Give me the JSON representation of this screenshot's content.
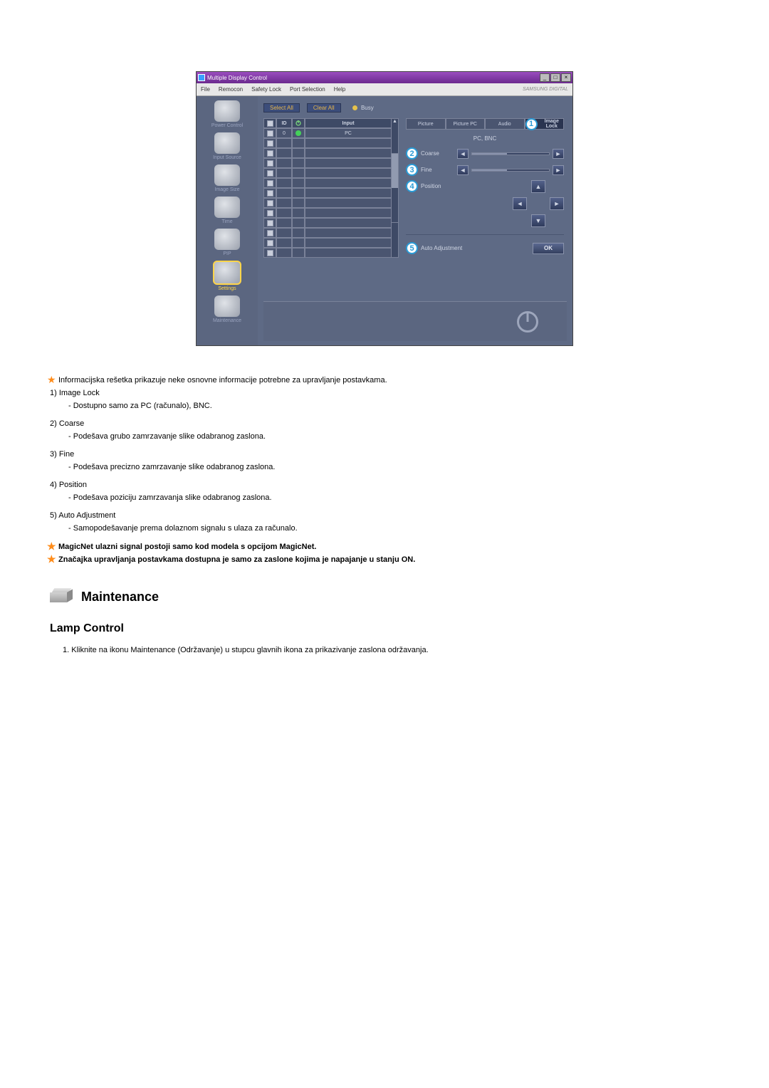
{
  "window": {
    "title": "Multiple Display Control",
    "menu": [
      "File",
      "Remocon",
      "Safety Lock",
      "Port Selection",
      "Help"
    ],
    "brand": "SAMSUNG DIGITAL"
  },
  "sidebar": {
    "items": [
      {
        "label": "Power Control"
      },
      {
        "label": "Input Source"
      },
      {
        "label": "Image Size"
      },
      {
        "label": "Time"
      },
      {
        "label": "PIP"
      },
      {
        "label": "Settings"
      },
      {
        "label": "Maintenance"
      }
    ],
    "active_index": 5
  },
  "toolbar": {
    "select_all": "Select All",
    "clear_all": "Clear All",
    "busy": "Busy"
  },
  "grid": {
    "headers": {
      "id": "ID",
      "pw": "",
      "input": "Input"
    },
    "first_row": {
      "id": "0",
      "input": "PC"
    },
    "blank_rows": 12
  },
  "panel": {
    "tabs": [
      "Picture",
      "Picture PC",
      "Audio",
      "Image Lock"
    ],
    "active_tab_index": 3,
    "badge1": "1",
    "subhead": "PC, BNC",
    "coarse": {
      "badge": "2",
      "label": "Coarse"
    },
    "fine": {
      "badge": "3",
      "label": "Fine"
    },
    "position": {
      "badge": "4",
      "label": "Position"
    },
    "auto": {
      "badge": "5",
      "label": "Auto Adjustment",
      "ok": "OK"
    }
  },
  "doc": {
    "intro": "Informacijska rešetka prikazuje neke osnovne informacije potrebne za upravljanje postavkama.",
    "items": [
      {
        "n": "1)",
        "title": "Image Lock",
        "sub": "Dostupno samo za PC (računalo), BNC."
      },
      {
        "n": "2)",
        "title": "Coarse",
        "sub": "Podešava grubo zamrzavanje slike odabranog zaslona."
      },
      {
        "n": "3)",
        "title": "Fine",
        "sub": "Podešava precizno zamrzavanje slike odabranog zaslona."
      },
      {
        "n": "4)",
        "title": "Position",
        "sub": "Podešava poziciju zamrzavanja slike odabranog zaslona."
      },
      {
        "n": "5)",
        "title": "Auto Adjustment",
        "sub": "Samopodešavanje prema dolaznom signalu s ulaza za računalo."
      }
    ],
    "star_notes": [
      "MagicNet ulazni signal postoji samo kod modela s opcijom MagicNet.",
      "Značajka upravljanja postavkama dostupna je samo za zaslone kojima je napajanje u stanju ON."
    ],
    "maintenance_heading": "Maintenance",
    "lamp_heading": "Lamp Control",
    "lamp_step1": "Kliknite na ikonu Maintenance (Održavanje) u stupcu glavnih ikona za prikazivanje zaslona održavanja."
  },
  "colors": {
    "accent": "#2a9bd6",
    "star": "#ff8c1a"
  }
}
